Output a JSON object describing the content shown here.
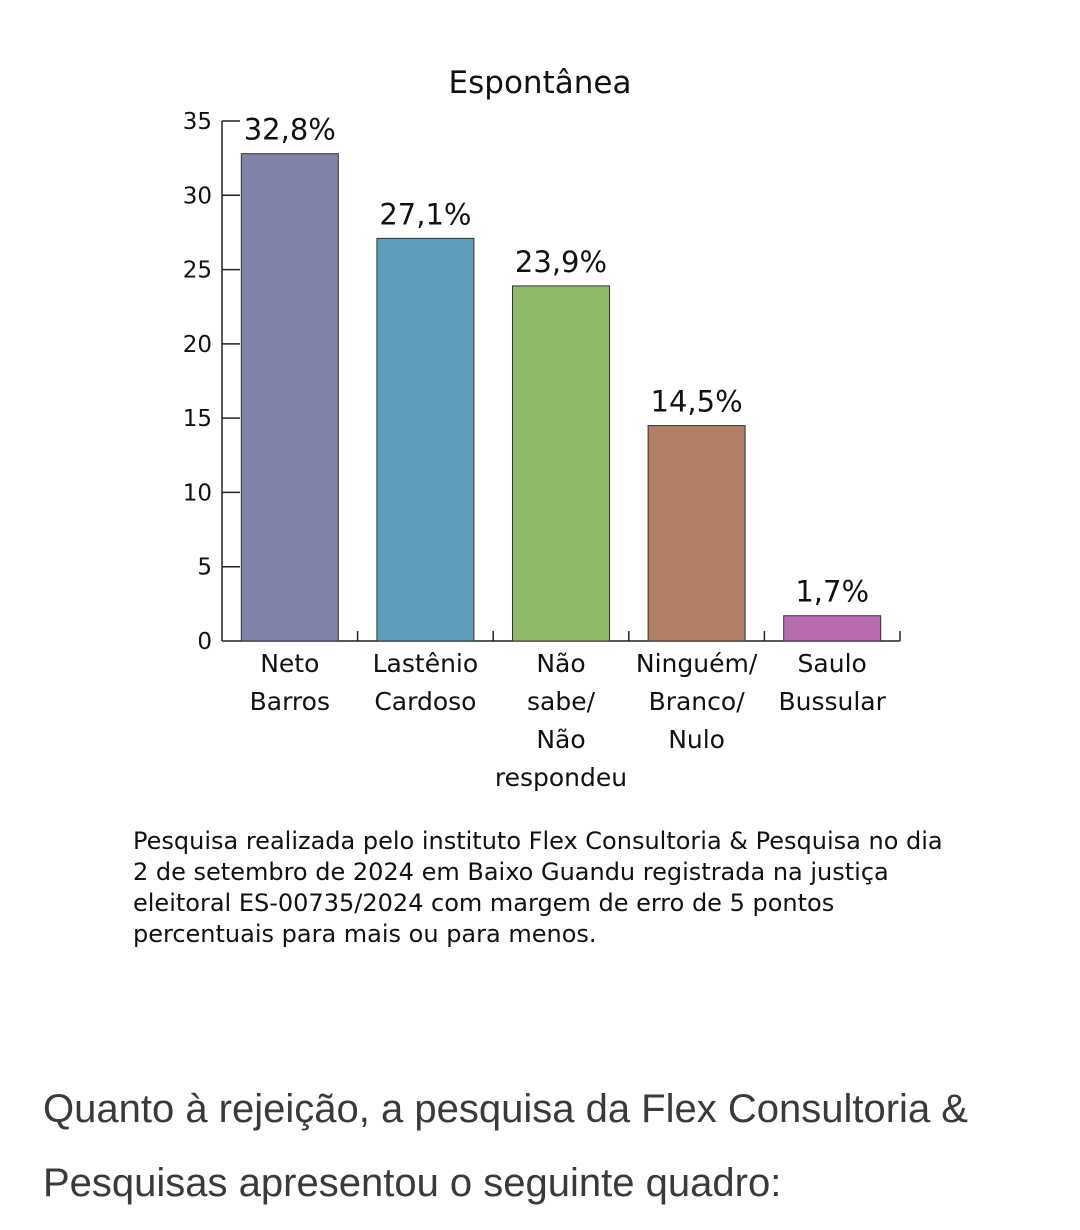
{
  "chart_data": {
    "type": "bar",
    "title": "Espontânea",
    "categories": [
      [
        "Neto",
        "Barros"
      ],
      [
        "Lastênio",
        "Cardoso"
      ],
      [
        "Não",
        "sabe/",
        "Não",
        "respondeu"
      ],
      [
        "Ninguém/",
        "Branco/",
        "Nulo"
      ],
      [
        "Saulo",
        "Bussular"
      ]
    ],
    "values": [
      32.8,
      27.1,
      23.9,
      14.5,
      1.7
    ],
    "data_labels": [
      "32,8%",
      "27,1%",
      "23,9%",
      "14,5%",
      "1,7%"
    ],
    "colors": [
      "#8082a8",
      "#5f9dbc",
      "#8fbb67",
      "#b07f66",
      "#b96bb2"
    ],
    "ylim": [
      0,
      35
    ],
    "yticks": [
      0,
      5,
      10,
      15,
      20,
      25,
      30,
      35
    ],
    "xlabel": "",
    "ylabel": "",
    "grid": false,
    "legend": "none"
  },
  "note": "Pesquisa realizada pelo instituto Flex Consultoria & Pesquisa no dia 2 de setembro de 2024 em Baixo Guandu registrada na justiça eleitoral ES-00735/2024 com margem de erro de 5 pontos percentuais para mais ou para menos.",
  "article": {
    "paragraph": "Quanto à rejeição, a pesquisa da Flex Consultoria & Pesquisas apresentou o seguinte quadro:"
  }
}
